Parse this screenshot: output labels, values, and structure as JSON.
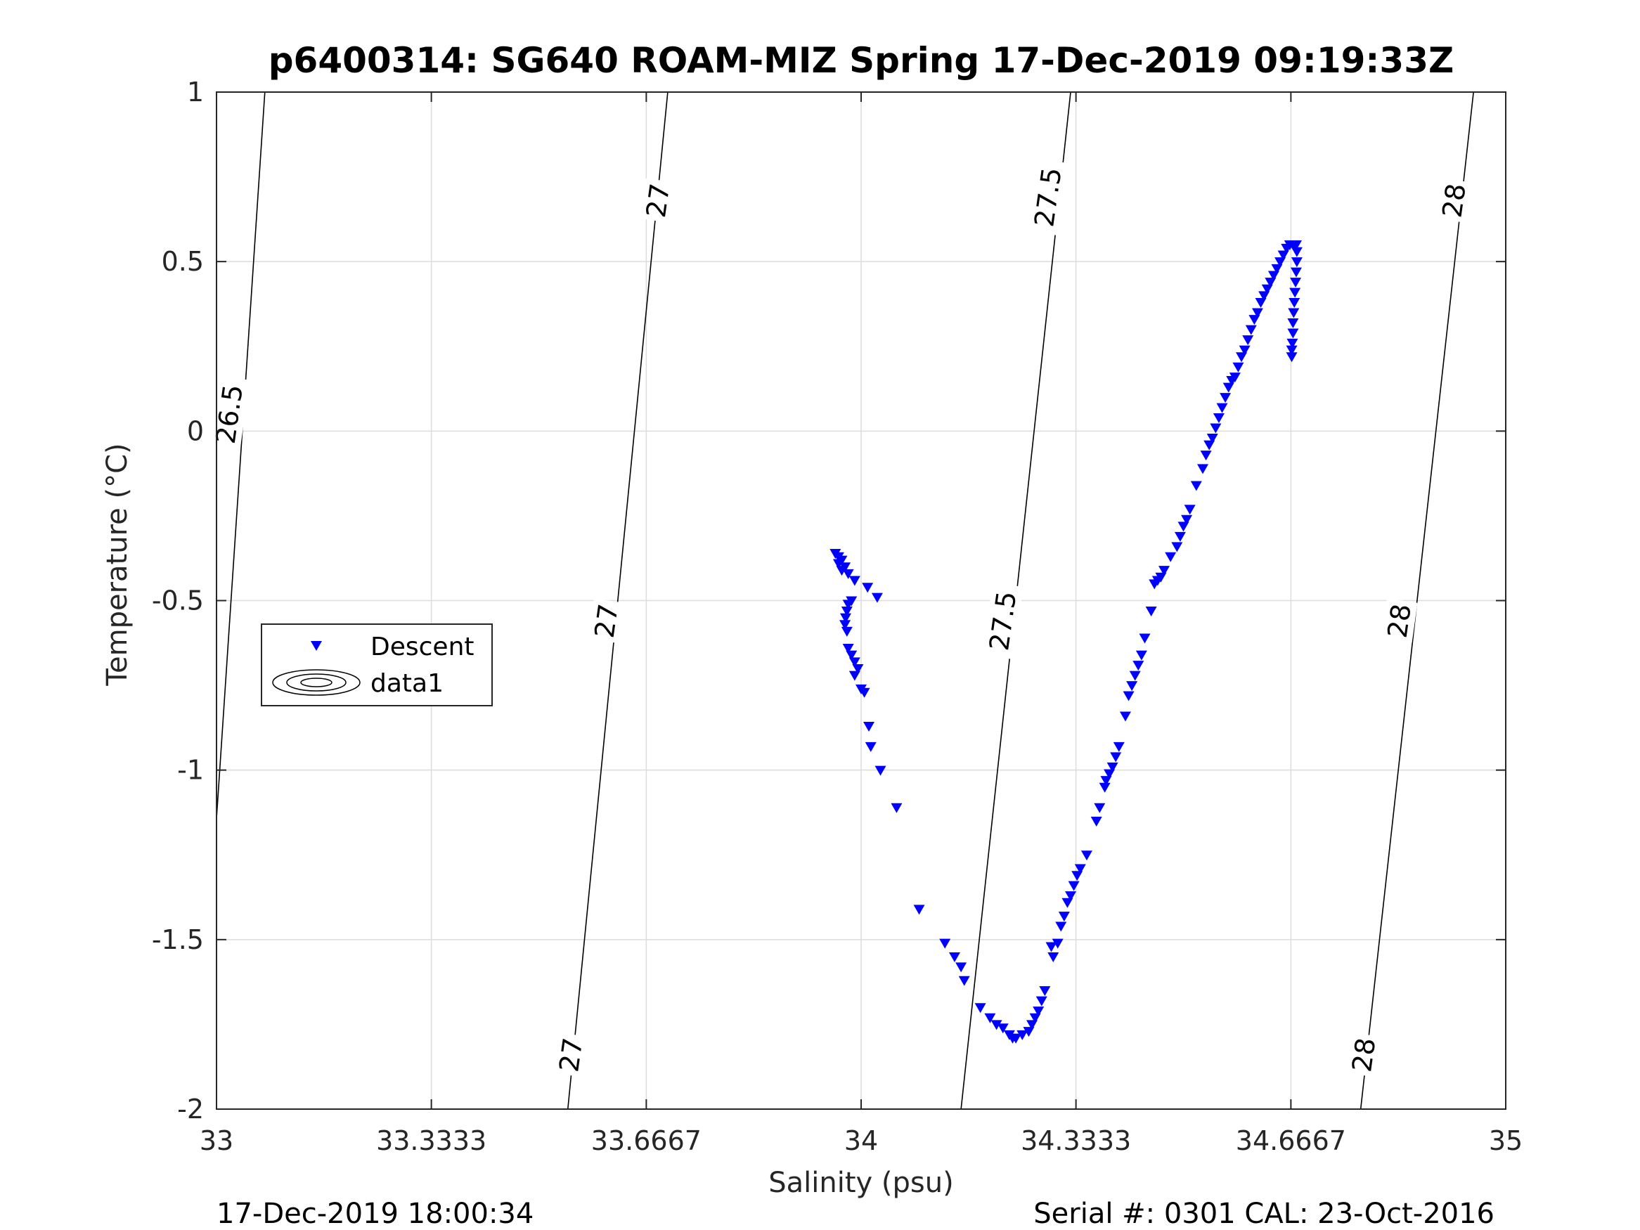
{
  "chart_data": {
    "type": "scatter",
    "title": "p6400314: SG640 ROAM-MIZ Spring 17-Dec-2019 09:19:33Z",
    "xlabel": "Salinity (psu)",
    "ylabel": "Temperature (°C)",
    "xlim": [
      33,
      35
    ],
    "ylim": [
      -2,
      1
    ],
    "grid": true,
    "x_ticks": [
      "33",
      "33.3333",
      "33.6667",
      "34",
      "34.3333",
      "34.6667",
      "35"
    ],
    "x_tick_values": [
      33,
      33.3333,
      33.6667,
      34,
      34.3333,
      34.6667,
      35
    ],
    "y_ticks": [
      "1",
      "0.5",
      "0",
      "-0.5",
      "-1",
      "-1.5",
      "-2"
    ],
    "y_tick_values": [
      1,
      0.5,
      0,
      -0.5,
      -1,
      -1.5,
      -2
    ],
    "legend": {
      "placement": "center-left",
      "entries": [
        "Descent",
        "data1"
      ]
    },
    "series": [
      {
        "name": "Descent",
        "marker": "triangle-down",
        "color": "#0000ff",
        "points": [
          [
            33.96,
            -0.36
          ],
          [
            33.965,
            -0.37
          ],
          [
            33.97,
            -0.38
          ],
          [
            33.965,
            -0.39
          ],
          [
            33.975,
            -0.4
          ],
          [
            33.97,
            -0.41
          ],
          [
            33.98,
            -0.42
          ],
          [
            33.99,
            -0.44
          ],
          [
            34.01,
            -0.46
          ],
          [
            34.025,
            -0.49
          ],
          [
            33.985,
            -0.5
          ],
          [
            33.98,
            -0.51
          ],
          [
            33.978,
            -0.53
          ],
          [
            33.976,
            -0.55
          ],
          [
            33.975,
            -0.57
          ],
          [
            33.978,
            -0.59
          ],
          [
            33.98,
            -0.64
          ],
          [
            33.985,
            -0.66
          ],
          [
            33.99,
            -0.68
          ],
          [
            33.995,
            -0.7
          ],
          [
            33.99,
            -0.72
          ],
          [
            34.0,
            -0.76
          ],
          [
            34.005,
            -0.77
          ],
          [
            34.012,
            -0.87
          ],
          [
            34.015,
            -0.93
          ],
          [
            34.03,
            -1.0
          ],
          [
            34.055,
            -1.11
          ],
          [
            34.09,
            -1.41
          ],
          [
            34.13,
            -1.51
          ],
          [
            34.145,
            -1.55
          ],
          [
            34.155,
            -1.58
          ],
          [
            34.16,
            -1.62
          ],
          [
            34.185,
            -1.7
          ],
          [
            34.2,
            -1.73
          ],
          [
            34.21,
            -1.75
          ],
          [
            34.22,
            -1.76
          ],
          [
            34.23,
            -1.78
          ],
          [
            34.235,
            -1.79
          ],
          [
            34.24,
            -1.79
          ],
          [
            34.25,
            -1.78
          ],
          [
            34.26,
            -1.77
          ],
          [
            34.265,
            -1.75
          ],
          [
            34.27,
            -1.73
          ],
          [
            34.275,
            -1.71
          ],
          [
            34.28,
            -1.68
          ],
          [
            34.285,
            -1.65
          ],
          [
            34.298,
            -1.55
          ],
          [
            34.295,
            -1.52
          ],
          [
            34.305,
            -1.51
          ],
          [
            34.31,
            -1.46
          ],
          [
            34.315,
            -1.43
          ],
          [
            34.32,
            -1.39
          ],
          [
            34.325,
            -1.37
          ],
          [
            34.33,
            -1.34
          ],
          [
            34.335,
            -1.31
          ],
          [
            34.34,
            -1.29
          ],
          [
            34.35,
            -1.25
          ],
          [
            34.365,
            -1.15
          ],
          [
            34.37,
            -1.11
          ],
          [
            34.378,
            -1.05
          ],
          [
            34.38,
            -1.03
          ],
          [
            34.385,
            -1.01
          ],
          [
            34.39,
            -0.99
          ],
          [
            34.395,
            -0.96
          ],
          [
            34.4,
            -0.93
          ],
          [
            34.41,
            -0.84
          ],
          [
            34.415,
            -0.78
          ],
          [
            34.42,
            -0.75
          ],
          [
            34.425,
            -0.72
          ],
          [
            34.43,
            -0.69
          ],
          [
            34.435,
            -0.66
          ],
          [
            34.44,
            -0.61
          ],
          [
            34.45,
            -0.53
          ],
          [
            34.455,
            -0.45
          ],
          [
            34.46,
            -0.44
          ],
          [
            34.465,
            -0.43
          ],
          [
            34.47,
            -0.41
          ],
          [
            34.48,
            -0.37
          ],
          [
            34.49,
            -0.34
          ],
          [
            34.495,
            -0.31
          ],
          [
            34.5,
            -0.28
          ],
          [
            34.505,
            -0.26
          ],
          [
            34.51,
            -0.23
          ],
          [
            34.52,
            -0.16
          ],
          [
            34.53,
            -0.11
          ],
          [
            34.535,
            -0.07
          ],
          [
            34.54,
            -0.04
          ],
          [
            34.545,
            -0.02
          ],
          [
            34.55,
            0.01
          ],
          [
            34.555,
            0.04
          ],
          [
            34.56,
            0.07
          ],
          [
            34.565,
            0.1
          ],
          [
            34.57,
            0.13
          ],
          [
            34.575,
            0.15
          ],
          [
            34.58,
            0.16
          ],
          [
            34.585,
            0.19
          ],
          [
            34.59,
            0.22
          ],
          [
            34.595,
            0.24
          ],
          [
            34.6,
            0.27
          ],
          [
            34.605,
            0.3
          ],
          [
            34.61,
            0.33
          ],
          [
            34.615,
            0.35
          ],
          [
            34.62,
            0.38
          ],
          [
            34.625,
            0.4
          ],
          [
            34.63,
            0.42
          ],
          [
            34.635,
            0.44
          ],
          [
            34.64,
            0.46
          ],
          [
            34.645,
            0.48
          ],
          [
            34.65,
            0.5
          ],
          [
            34.655,
            0.52
          ],
          [
            34.66,
            0.54
          ],
          [
            34.665,
            0.55
          ],
          [
            34.67,
            0.55
          ],
          [
            34.675,
            0.55
          ],
          [
            34.676,
            0.53
          ],
          [
            34.676,
            0.5
          ],
          [
            34.675,
            0.47
          ],
          [
            34.674,
            0.44
          ],
          [
            34.673,
            0.41
          ],
          [
            34.672,
            0.38
          ],
          [
            34.671,
            0.35
          ],
          [
            34.67,
            0.32
          ],
          [
            34.67,
            0.29
          ],
          [
            34.669,
            0.26
          ],
          [
            34.668,
            0.24
          ],
          [
            34.668,
            0.22
          ]
        ]
      }
    ],
    "isopycnals": {
      "name": "data1",
      "levels": [
        26.5,
        27,
        27.5,
        28
      ],
      "labels": [
        {
          "text": "26.5",
          "x": 33.02,
          "y": 0.05
        },
        {
          "text": "27",
          "x": 33.685,
          "y": 0.68
        },
        {
          "text": "27",
          "x": 33.605,
          "y": -0.56
        },
        {
          "text": "27",
          "x": 33.55,
          "y": -1.84
        },
        {
          "text": "27.5",
          "x": 34.29,
          "y": 0.69
        },
        {
          "text": "27.5",
          "x": 34.22,
          "y": -0.56
        },
        {
          "text": "28",
          "x": 34.92,
          "y": 0.68
        },
        {
          "text": "28",
          "x": 34.835,
          "y": -0.56
        },
        {
          "text": "28",
          "x": 34.78,
          "y": -1.84
        }
      ]
    }
  },
  "footer": {
    "left": "17-Dec-2019 18:00:34",
    "right": "Serial #: 0301  CAL: 23-Oct-2016"
  }
}
